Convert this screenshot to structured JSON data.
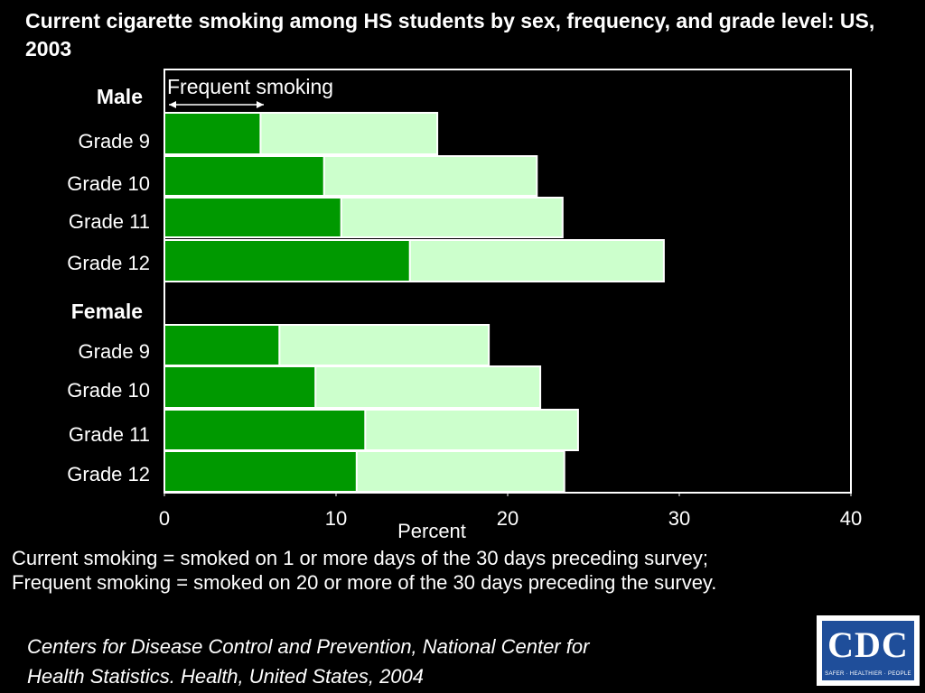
{
  "title": "Current cigarette smoking among HS students by sex, frequency, and grade level: US, 2003",
  "chart_data": {
    "type": "bar",
    "orientation": "horizontal",
    "stacked": true,
    "xlabel": "Percent",
    "xlim": [
      0,
      40
    ],
    "xticks": [
      "0",
      "10",
      "20",
      "30",
      "40"
    ],
    "annotation": "Frequent smoking",
    "groups": [
      {
        "name": "Male",
        "categories": [
          "Grade 9",
          "Grade 10",
          "Grade 11",
          "Grade 12"
        ],
        "frequent": [
          5.6,
          9.3,
          10.3,
          14.3
        ],
        "current": [
          15.9,
          21.7,
          23.2,
          29.1
        ]
      },
      {
        "name": "Female",
        "categories": [
          "Grade 9",
          "Grade 10",
          "Grade 11",
          "Grade 12"
        ],
        "frequent": [
          6.7,
          8.8,
          11.7,
          11.2
        ],
        "current": [
          18.9,
          21.9,
          24.1,
          23.3
        ]
      }
    ],
    "colors": {
      "frequent": "#009900",
      "current": "#ccffcc",
      "border": "#ffffff"
    }
  },
  "footnote": {
    "line1": "Current smoking = smoked on 1 or more days of the 30 days preceding survey;",
    "line2": "Frequent smoking = smoked on 20 or more of the 30 days preceding the survey."
  },
  "source": {
    "line1": "Centers for Disease Control and Prevention, National Center for",
    "line2": "Health Statistics. Health, United States, 2004"
  },
  "logo": {
    "text": "CDC",
    "tagline": "SAFER · HEALTHIER · PEOPLE"
  }
}
